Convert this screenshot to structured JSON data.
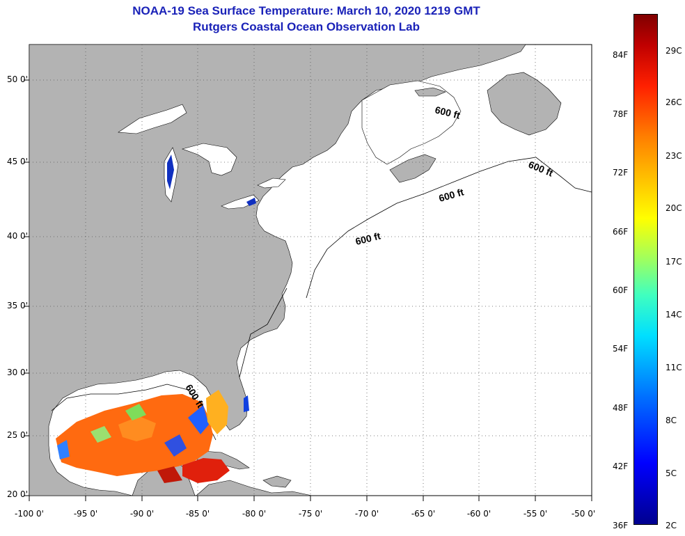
{
  "title": {
    "line1": "NOAA-19 Sea Surface Temperature:  March 10, 2020 1219 GMT",
    "line2": "Rutgers Coastal Ocean Observation Lab"
  },
  "latitude_labels": [
    "50 0'",
    "45 0'",
    "40 0'",
    "35 0'",
    "30 0'",
    "25 0'",
    "20 0'"
  ],
  "longitude_labels": [
    "-100 0'",
    "-95 0'",
    "-90 0'",
    "-85 0'",
    "-80 0'",
    "-75 0'",
    "-70 0'",
    "-65 0'",
    "-60 0'",
    "-55 0'",
    "-50 0'"
  ],
  "isobath_labels": [
    "600 ft",
    "600 ft",
    "600 ft",
    "600 ft",
    "600 ft"
  ],
  "colorbar": {
    "fahrenheit": [
      "84F",
      "78F",
      "72F",
      "66F",
      "60F",
      "54F",
      "48F",
      "42F",
      "36F"
    ],
    "celsius": [
      "29C",
      "26C",
      "23C",
      "20C",
      "17C",
      "14C",
      "11C",
      "8C",
      "5C",
      "2C"
    ]
  },
  "colors": {
    "land": "#b3b3b3",
    "water": "#ffffff",
    "title": "#1a22b8"
  }
}
